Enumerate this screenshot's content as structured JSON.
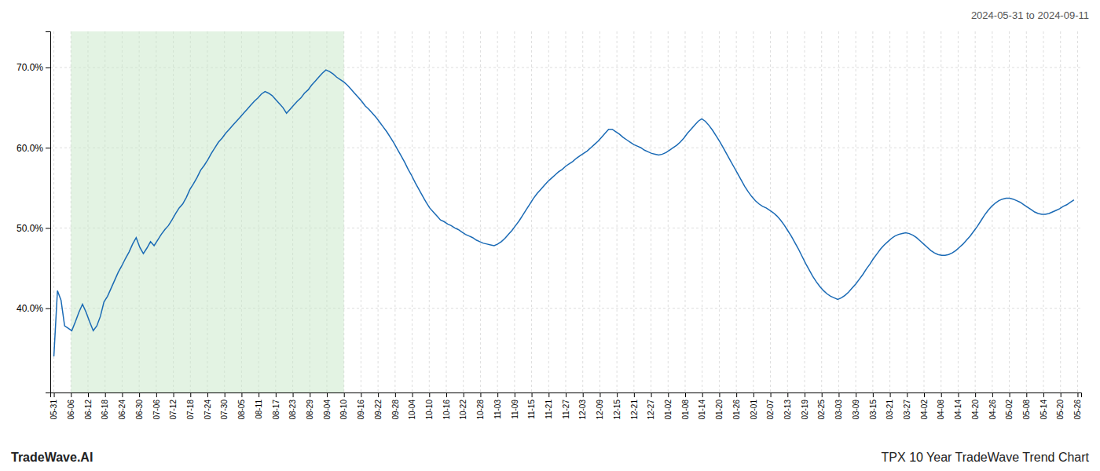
{
  "chart_data": {
    "type": "line",
    "title": "TPX 10 Year TradeWave Trend Chart",
    "subtitle": "2024-05-31 to 2024-09-11",
    "annotations": [
      "TradeWave.AI"
    ],
    "color": "#1a6ab5",
    "grid": true,
    "shaded_region": {
      "from": 4.766666666666667,
      "to": 81.03333333333333,
      "color": "#c8e8c8"
    },
    "xlim": [
      -1,
      287
    ],
    "xticks": [
      {
        "value": 0,
        "label": "05-31"
      },
      {
        "value": 4.766666666666667,
        "label": "06-06"
      },
      {
        "value": 9.533333333333333,
        "label": "06-12"
      },
      {
        "value": 14.3,
        "label": "06-18"
      },
      {
        "value": 19.066666666666666,
        "label": "06-24"
      },
      {
        "value": 23.833333333333332,
        "label": "06-30"
      },
      {
        "value": 28.6,
        "label": "07-06"
      },
      {
        "value": 33.36666666666667,
        "label": "07-12"
      },
      {
        "value": 38.13333333333333,
        "label": "07-18"
      },
      {
        "value": 42.9,
        "label": "07-24"
      },
      {
        "value": 47.666666666666664,
        "label": "07-30"
      },
      {
        "value": 52.43333333333333,
        "label": "08-05"
      },
      {
        "value": 57.2,
        "label": "08-11"
      },
      {
        "value": 61.96666666666667,
        "label": "08-17"
      },
      {
        "value": 66.73333333333333,
        "label": "08-23"
      },
      {
        "value": 71.5,
        "label": "08-29"
      },
      {
        "value": 76.26666666666667,
        "label": "09-04"
      },
      {
        "value": 81.03333333333333,
        "label": "09-10"
      },
      {
        "value": 85.8,
        "label": "09-16"
      },
      {
        "value": 90.56666666666666,
        "label": "09-22"
      },
      {
        "value": 95.33333333333333,
        "label": "09-28"
      },
      {
        "value": 100.1,
        "label": "10-04"
      },
      {
        "value": 104.86666666666666,
        "label": "10-10"
      },
      {
        "value": 109.63333333333333,
        "label": "10-16"
      },
      {
        "value": 114.4,
        "label": "10-22"
      },
      {
        "value": 119.16666666666667,
        "label": "10-28"
      },
      {
        "value": 123.93333333333334,
        "label": "11-03"
      },
      {
        "value": 128.7,
        "label": "11-09"
      },
      {
        "value": 133.46666666666667,
        "label": "11-15"
      },
      {
        "value": 138.23333333333332,
        "label": "11-21"
      },
      {
        "value": 143,
        "label": "11-27"
      },
      {
        "value": 147.76666666666668,
        "label": "12-03"
      },
      {
        "value": 152.53333333333333,
        "label": "12-09"
      },
      {
        "value": 157.3,
        "label": "12-15"
      },
      {
        "value": 162.06666666666666,
        "label": "12-21"
      },
      {
        "value": 166.83333333333334,
        "label": "12-27"
      },
      {
        "value": 171.6,
        "label": "01-02"
      },
      {
        "value": 176.36666666666667,
        "label": "01-08"
      },
      {
        "value": 181.13333333333333,
        "label": "01-14"
      },
      {
        "value": 185.9,
        "label": "01-20"
      },
      {
        "value": 190.66666666666666,
        "label": "01-26"
      },
      {
        "value": 195.43333333333334,
        "label": "02-01"
      },
      {
        "value": 200.2,
        "label": "02-07"
      },
      {
        "value": 204.96666666666667,
        "label": "02-13"
      },
      {
        "value": 209.73333333333332,
        "label": "02-19"
      },
      {
        "value": 214.5,
        "label": "02-25"
      },
      {
        "value": 219.26666666666668,
        "label": "03-03"
      },
      {
        "value": 224.03333333333333,
        "label": "03-09"
      },
      {
        "value": 228.8,
        "label": "03-15"
      },
      {
        "value": 233.56666666666666,
        "label": "03-21"
      },
      {
        "value": 238.33333333333334,
        "label": "03-27"
      },
      {
        "value": 243.1,
        "label": "04-02"
      },
      {
        "value": 247.86666666666667,
        "label": "04-08"
      },
      {
        "value": 252.63333333333333,
        "label": "04-14"
      },
      {
        "value": 257.4,
        "label": "04-20"
      },
      {
        "value": 262.1666666666667,
        "label": "04-26"
      },
      {
        "value": 266.93333333333334,
        "label": "05-02"
      },
      {
        "value": 271.7,
        "label": "05-08"
      },
      {
        "value": 276.46666666666664,
        "label": "05-14"
      },
      {
        "value": 281.23333333333335,
        "label": "05-20"
      },
      {
        "value": 286,
        "label": "05-26"
      }
    ],
    "ylim": [
      0.295,
      0.745
    ],
    "yticks": [
      {
        "value": 0.4,
        "label": "40.0%"
      },
      {
        "value": 0.5,
        "label": "50.0%"
      },
      {
        "value": 0.6,
        "label": "60.0%"
      },
      {
        "value": 0.7,
        "label": "70.0%"
      }
    ],
    "values": [
      0.34,
      0.422,
      0.41,
      0.378,
      0.375,
      0.372,
      0.383,
      0.395,
      0.405,
      0.395,
      0.383,
      0.372,
      0.378,
      0.39,
      0.408,
      0.415,
      0.425,
      0.435,
      0.445,
      0.453,
      0.462,
      0.47,
      0.48,
      0.488,
      0.476,
      0.468,
      0.475,
      0.483,
      0.478,
      0.485,
      0.492,
      0.498,
      0.503,
      0.51,
      0.518,
      0.525,
      0.53,
      0.538,
      0.548,
      0.555,
      0.563,
      0.572,
      0.578,
      0.585,
      0.593,
      0.6,
      0.607,
      0.612,
      0.618,
      0.623,
      0.628,
      0.633,
      0.638,
      0.643,
      0.648,
      0.653,
      0.658,
      0.662,
      0.667,
      0.67,
      0.668,
      0.665,
      0.66,
      0.655,
      0.65,
      0.643,
      0.648,
      0.653,
      0.658,
      0.662,
      0.668,
      0.672,
      0.678,
      0.683,
      0.688,
      0.693,
      0.697,
      0.695,
      0.692,
      0.688,
      0.685,
      0.682,
      0.678,
      0.673,
      0.668,
      0.663,
      0.658,
      0.652,
      0.648,
      0.643,
      0.638,
      0.632,
      0.626,
      0.62,
      0.613,
      0.606,
      0.598,
      0.59,
      0.582,
      0.573,
      0.565,
      0.556,
      0.548,
      0.54,
      0.532,
      0.525,
      0.52,
      0.515,
      0.51,
      0.508,
      0.505,
      0.503,
      0.5,
      0.498,
      0.495,
      0.492,
      0.49,
      0.488,
      0.485,
      0.483,
      0.481,
      0.48,
      0.479,
      0.478,
      0.48,
      0.483,
      0.487,
      0.492,
      0.497,
      0.503,
      0.509,
      0.516,
      0.523,
      0.53,
      0.537,
      0.543,
      0.548,
      0.553,
      0.558,
      0.562,
      0.566,
      0.57,
      0.573,
      0.577,
      0.58,
      0.583,
      0.587,
      0.59,
      0.593,
      0.596,
      0.6,
      0.604,
      0.608,
      0.613,
      0.618,
      0.623,
      0.623,
      0.62,
      0.617,
      0.613,
      0.61,
      0.607,
      0.604,
      0.602,
      0.6,
      0.597,
      0.595,
      0.593,
      0.592,
      0.591,
      0.592,
      0.594,
      0.597,
      0.6,
      0.603,
      0.607,
      0.612,
      0.618,
      0.623,
      0.628,
      0.633,
      0.636,
      0.633,
      0.628,
      0.622,
      0.615,
      0.608,
      0.6,
      0.592,
      0.584,
      0.576,
      0.568,
      0.56,
      0.552,
      0.545,
      0.539,
      0.534,
      0.53,
      0.527,
      0.525,
      0.522,
      0.519,
      0.515,
      0.51,
      0.504,
      0.497,
      0.49,
      0.482,
      0.474,
      0.465,
      0.456,
      0.448,
      0.44,
      0.433,
      0.427,
      0.422,
      0.418,
      0.415,
      0.413,
      0.411,
      0.413,
      0.416,
      0.42,
      0.425,
      0.43,
      0.436,
      0.442,
      0.449,
      0.455,
      0.462,
      0.468,
      0.474,
      0.479,
      0.483,
      0.487,
      0.49,
      0.492,
      0.493,
      0.494,
      0.493,
      0.491,
      0.488,
      0.484,
      0.48,
      0.476,
      0.472,
      0.469,
      0.467,
      0.466,
      0.466,
      0.467,
      0.469,
      0.472,
      0.476,
      0.48,
      0.485,
      0.49,
      0.496,
      0.502,
      0.509,
      0.516,
      0.522,
      0.527,
      0.531,
      0.534,
      0.536,
      0.537,
      0.537,
      0.536,
      0.534,
      0.532,
      0.529,
      0.526,
      0.523,
      0.52,
      0.518,
      0.517,
      0.517,
      0.518,
      0.52,
      0.522,
      0.524,
      0.527,
      0.529,
      0.532,
      0.535
    ]
  }
}
